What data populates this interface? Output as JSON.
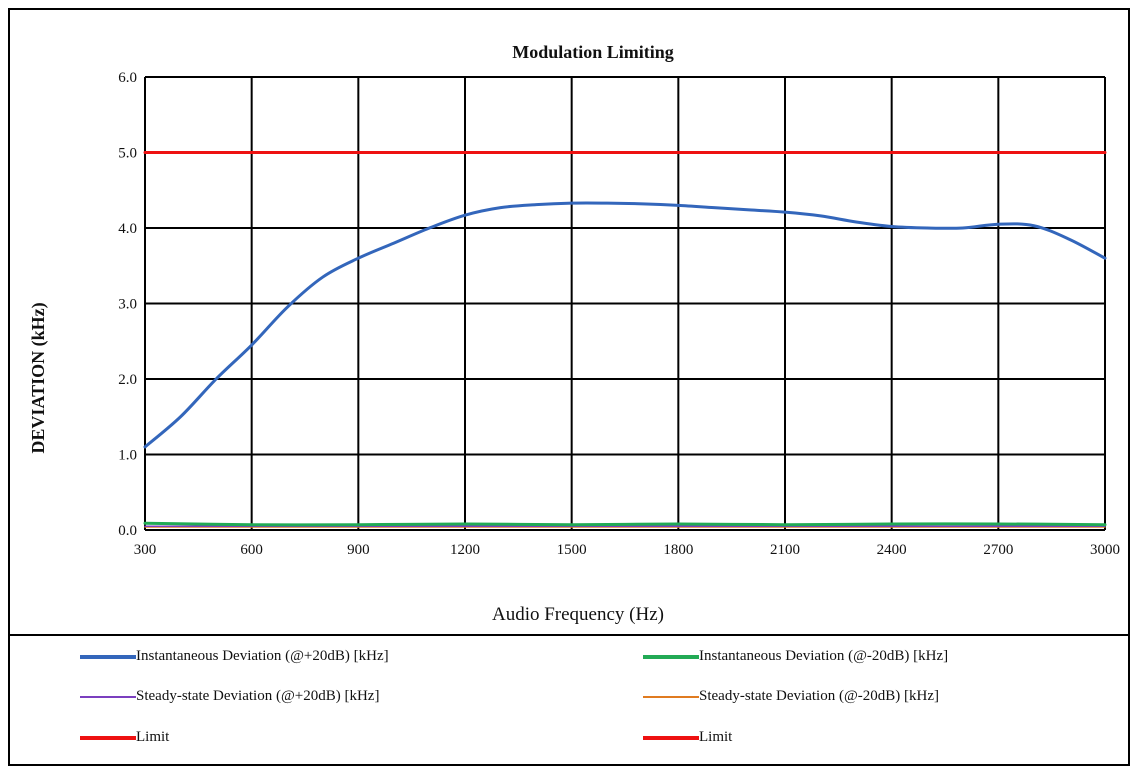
{
  "chart_data": {
    "type": "line",
    "title": "Modulation Limiting",
    "xlabel": "Audio Frequency (Hz)",
    "ylabel": "DEVIATION (kHz)",
    "xlim": [
      300,
      3000
    ],
    "ylim": [
      0,
      6
    ],
    "x_ticks": [
      "300",
      "600",
      "900",
      "1200",
      "1500",
      "1800",
      "2100",
      "2400",
      "2700",
      "3000"
    ],
    "y_ticks": [
      "0.0",
      "1.0",
      "2.0",
      "3.0",
      "4.0",
      "5.0",
      "6.0"
    ],
    "grid": true,
    "legend_position": "bottom",
    "series": [
      {
        "name": "Instantaneous Deviation (@+20dB) [kHz]",
        "color": "#3366bb",
        "width": 3,
        "x": [
          300,
          400,
          500,
          600,
          700,
          800,
          900,
          1000,
          1100,
          1200,
          1300,
          1400,
          1500,
          1600,
          1700,
          1800,
          1900,
          2000,
          2100,
          2200,
          2300,
          2400,
          2500,
          2600,
          2700,
          2800,
          2900,
          3000
        ],
        "values": [
          1.1,
          1.5,
          2.0,
          2.45,
          2.95,
          3.35,
          3.6,
          3.8,
          4.0,
          4.17,
          4.27,
          4.31,
          4.33,
          4.33,
          4.32,
          4.3,
          4.27,
          4.24,
          4.21,
          4.16,
          4.08,
          4.02,
          4.0,
          4.0,
          4.05,
          4.03,
          3.85,
          3.6
        ]
      },
      {
        "name": "Instantaneous Deviation (@-20dB) [kHz]",
        "color": "#22aa55",
        "width": 3,
        "x": [
          300,
          600,
          900,
          1200,
          1500,
          1800,
          2100,
          2400,
          2700,
          3000
        ],
        "values": [
          0.09,
          0.07,
          0.07,
          0.08,
          0.07,
          0.08,
          0.07,
          0.08,
          0.08,
          0.07
        ]
      },
      {
        "name": "Steady-state Deviation (@+20dB) [kHz]",
        "color": "#7b3fbf",
        "width": 1.5,
        "x": [
          300,
          600,
          900,
          1200,
          1500,
          1800,
          2100,
          2400,
          2700,
          3000
        ],
        "values": [
          0.05,
          0.05,
          0.05,
          0.05,
          0.05,
          0.05,
          0.05,
          0.05,
          0.05,
          0.05
        ]
      },
      {
        "name": "Steady-state Deviation (@-20dB) [kHz]",
        "color": "#e07b20",
        "width": 1.5,
        "x": [
          300,
          600,
          900,
          1200,
          1500,
          1800,
          2100,
          2400,
          2700,
          3000
        ],
        "values": [
          0.04,
          0.04,
          0.04,
          0.04,
          0.04,
          0.04,
          0.04,
          0.04,
          0.04,
          0.04
        ]
      },
      {
        "name": "Limit",
        "color": "#ee1111",
        "width": 3,
        "x": [
          300,
          3000
        ],
        "values": [
          5.0,
          5.0
        ]
      },
      {
        "name": "Limit",
        "color": "#ee1111",
        "width": 3,
        "x": [
          300,
          3000
        ],
        "values": [
          5.0,
          5.0
        ]
      }
    ]
  }
}
